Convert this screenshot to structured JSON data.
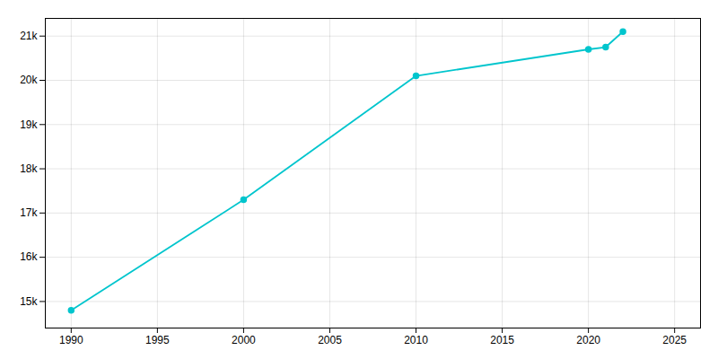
{
  "chart_data": {
    "type": "line",
    "x": [
      1990,
      2000,
      2010,
      2020,
      2021,
      2022
    ],
    "values": [
      14800,
      17300,
      20100,
      20700,
      20750,
      21100
    ],
    "color": "#00c5cd",
    "marker": "circle",
    "xlim": [
      1988.5,
      2026.5
    ],
    "xticks": [
      1990,
      1995,
      2000,
      2005,
      2010,
      2015,
      2020,
      2025
    ],
    "ylim": [
      14400,
      21400
    ],
    "yticks": [
      {
        "value": 15000,
        "label": "15k"
      },
      {
        "value": 16000,
        "label": "16k"
      },
      {
        "value": 17000,
        "label": "17k"
      },
      {
        "value": 18000,
        "label": "18k"
      },
      {
        "value": 19000,
        "label": "19k"
      },
      {
        "value": 20000,
        "label": "20k"
      },
      {
        "value": 21000,
        "label": "21k"
      }
    ],
    "grid": true
  }
}
